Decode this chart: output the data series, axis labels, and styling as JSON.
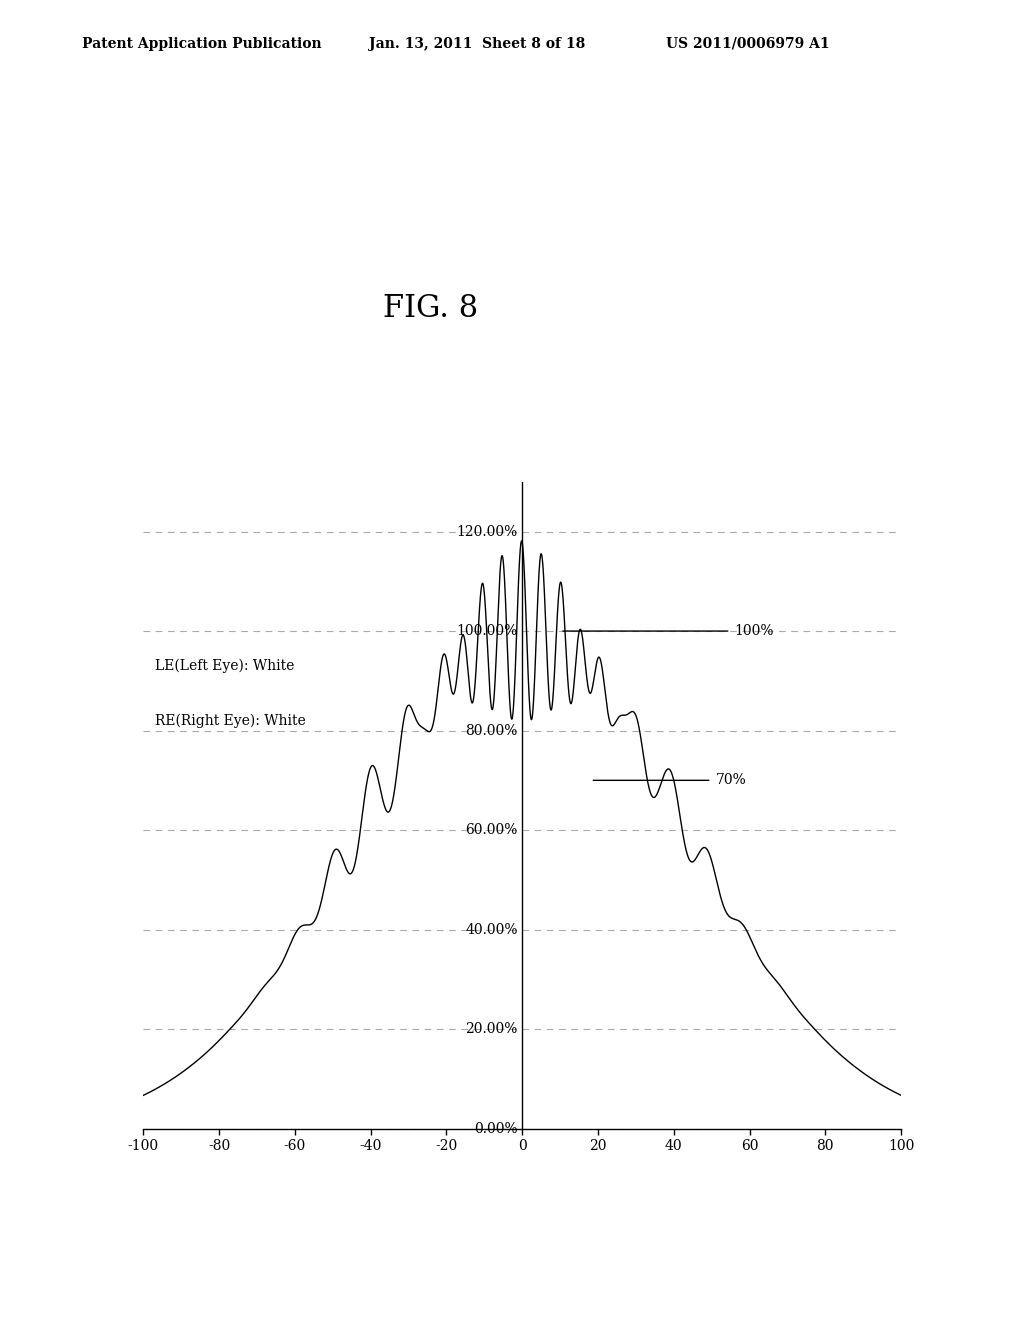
{
  "title": "FIG. 8",
  "header_left": "Patent Application Publication",
  "header_mid": "Jan. 13, 2011  Sheet 8 of 18",
  "header_right": "US 2011/0006979 A1",
  "xlim": [
    -100,
    100
  ],
  "ylim": [
    0,
    130
  ],
  "yticks": [
    0,
    20,
    40,
    60,
    80,
    100,
    120
  ],
  "ytick_labels": [
    "0.00%",
    "20.00%",
    "40.00%",
    "60.00%",
    "80.00%",
    "100.00%",
    "120.00%"
  ],
  "xticks": [
    -100,
    -80,
    -60,
    -40,
    -20,
    0,
    20,
    40,
    60,
    80,
    100
  ],
  "label_le": "LE(Left Eye): White",
  "label_re": "RE(Right Eye): White",
  "annotation_100": "100%",
  "annotation_70": "70%",
  "background_color": "#ffffff",
  "line_color": "#000000",
  "grid_color": "#aaaaaa"
}
